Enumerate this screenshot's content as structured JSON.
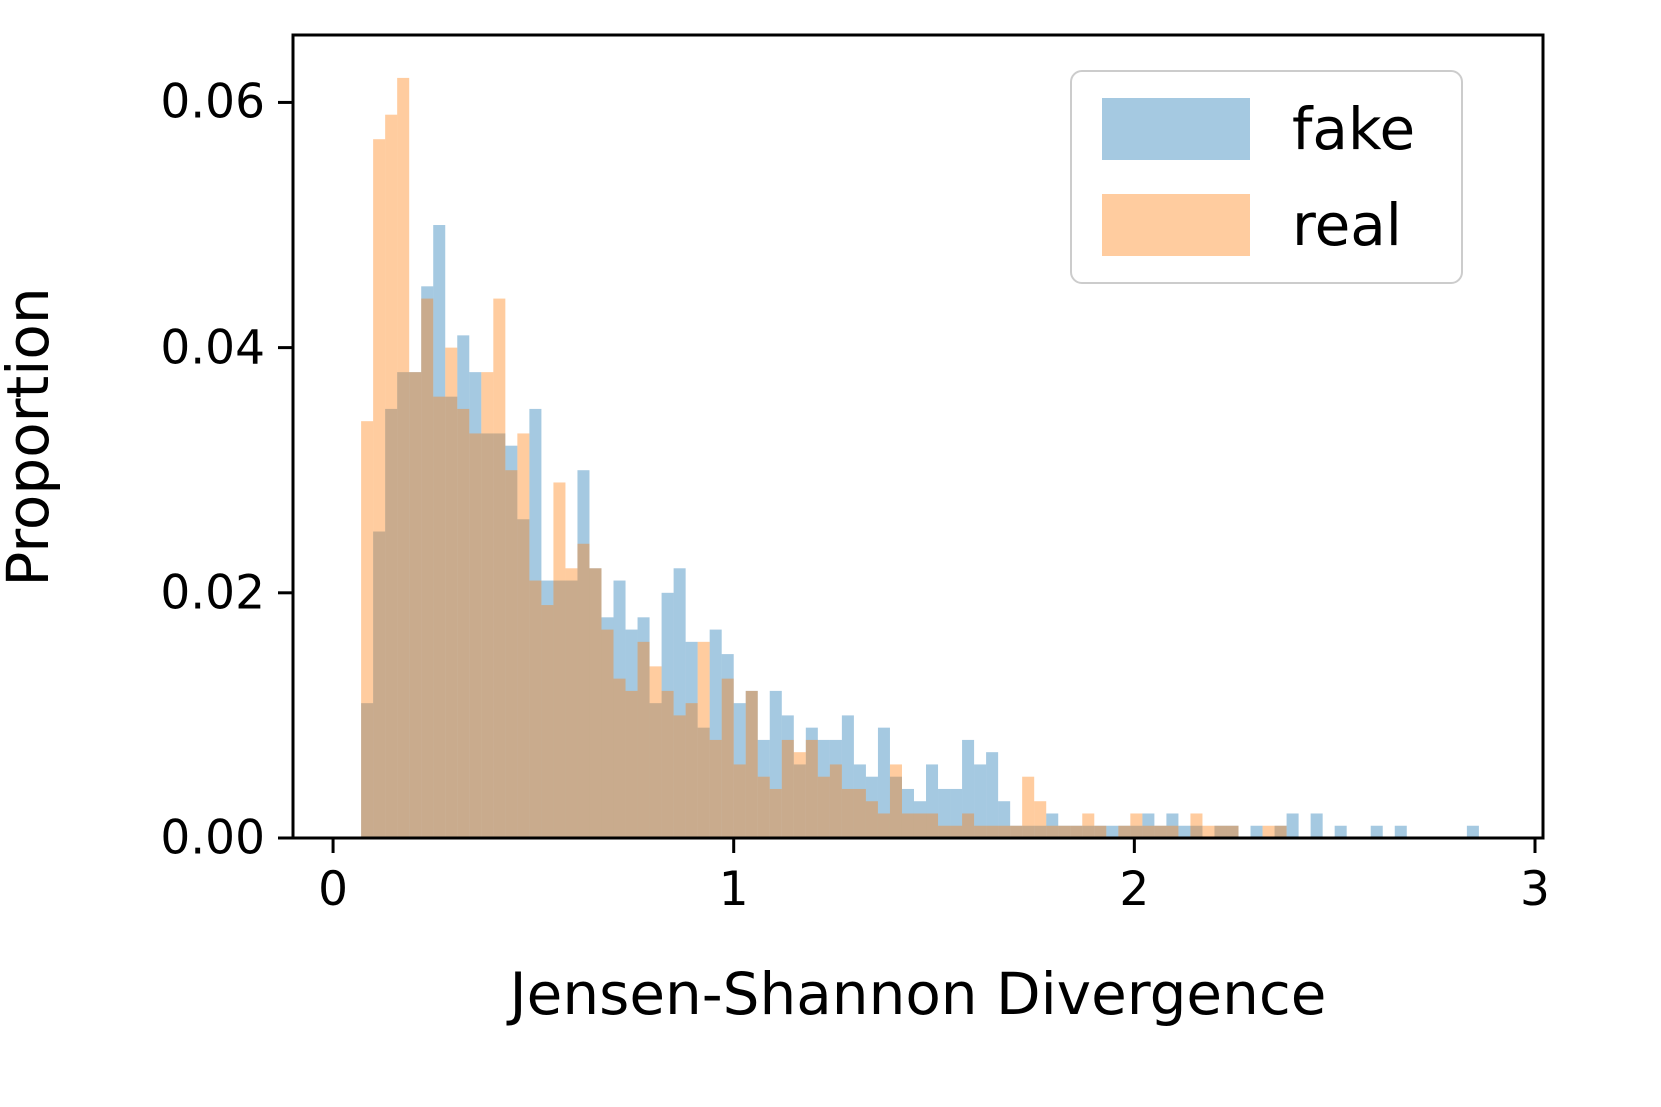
{
  "figure": {
    "background": "#ffffff",
    "xlabel": "Jensen-Shannon Divergence",
    "ylabel": "Proportion",
    "legend": [
      {
        "label": "fake",
        "color": "#1f77b4"
      },
      {
        "label": "real",
        "color": "#ff7f0e"
      }
    ]
  },
  "chart_data": {
    "type": "bar",
    "subtype": "overlaid-histogram",
    "title": "",
    "xlabel": "Jensen-Shannon Divergence",
    "ylabel": "Proportion",
    "xlim": [
      -0.1,
      3.02
    ],
    "ylim": [
      0,
      0.0655
    ],
    "x_ticks": [
      0,
      1,
      2,
      3
    ],
    "x_tick_labels": [
      "0",
      "1",
      "2",
      "3"
    ],
    "y_ticks": [
      0,
      0.02,
      0.04,
      0.06
    ],
    "y_tick_labels": [
      "0.00",
      "0.02",
      "0.04",
      "0.06"
    ],
    "grid": false,
    "legend_position": "upper right",
    "bar_alpha": 0.4,
    "bin_start": 0.07,
    "bin_width": 0.03,
    "series": [
      {
        "name": "fake",
        "color": "#1f77b4",
        "values": [
          0.011,
          0.025,
          0.035,
          0.038,
          0.038,
          0.045,
          0.05,
          0.036,
          0.041,
          0.038,
          0.033,
          0.033,
          0.032,
          0.026,
          0.035,
          0.021,
          0.021,
          0.021,
          0.03,
          0.022,
          0.018,
          0.021,
          0.017,
          0.018,
          0.011,
          0.02,
          0.022,
          0.016,
          0.009,
          0.017,
          0.015,
          0.011,
          0.012,
          0.008,
          0.012,
          0.01,
          0.006,
          0.009,
          0.008,
          0.008,
          0.01,
          0.006,
          0.005,
          0.009,
          0.005,
          0.004,
          0.003,
          0.006,
          0.004,
          0.004,
          0.008,
          0.006,
          0.007,
          0.003,
          0.001,
          0.001,
          0.001,
          0.002,
          0.001,
          0.001,
          0.001,
          0.001,
          0.001,
          0.001,
          0.001,
          0.002,
          0.001,
          0.002,
          0.001,
          0.001,
          0,
          0.001,
          0.001,
          0,
          0.001,
          0,
          0.001,
          0.002,
          0,
          0.002,
          0,
          0.001,
          0,
          0,
          0.001,
          0,
          0.001,
          0,
          0,
          0,
          0,
          0,
          0.001,
          0
        ]
      },
      {
        "name": "real",
        "color": "#ff7f0e",
        "values": [
          0.034,
          0.057,
          0.059,
          0.062,
          0.038,
          0.044,
          0.036,
          0.04,
          0.035,
          0.033,
          0.038,
          0.044,
          0.03,
          0.033,
          0.021,
          0.019,
          0.029,
          0.022,
          0.024,
          0.022,
          0.017,
          0.013,
          0.012,
          0.016,
          0.014,
          0.012,
          0.01,
          0.011,
          0.016,
          0.008,
          0.013,
          0.006,
          0.012,
          0.005,
          0.004,
          0.008,
          0.007,
          0.008,
          0.005,
          0.006,
          0.004,
          0.004,
          0.003,
          0.002,
          0.006,
          0.002,
          0.002,
          0.002,
          0.001,
          0.001,
          0.002,
          0.001,
          0.001,
          0.001,
          0.001,
          0.005,
          0.003,
          0.001,
          0.001,
          0.001,
          0.002,
          0.001,
          0,
          0.001,
          0.002,
          0.001,
          0.001,
          0.001,
          0,
          0.002,
          0.001,
          0.001,
          0.001,
          0,
          0,
          0.001,
          0.001,
          0,
          0,
          0,
          0,
          0,
          0,
          0,
          0,
          0,
          0,
          0,
          0,
          0,
          0,
          0,
          0,
          0
        ]
      }
    ]
  }
}
